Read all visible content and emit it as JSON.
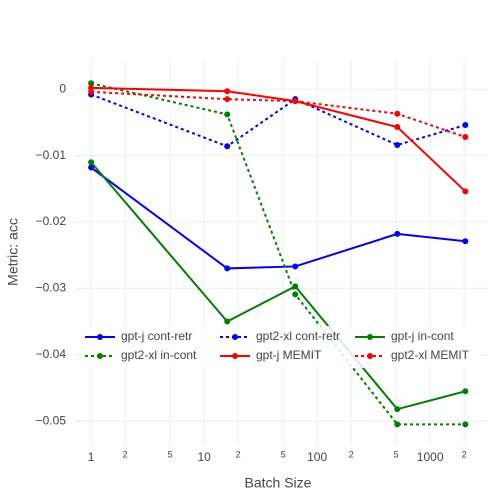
{
  "chart_data": {
    "type": "line",
    "x_label": "Batch Size",
    "y_label": "Metric: acc",
    "x": [
      1,
      16,
      64,
      512,
      2048
    ],
    "xlog": true,
    "xlim": [
      0.72,
      3250
    ],
    "xticks": [
      1,
      {
        "value": 2,
        "label": "2"
      },
      {
        "value": 5,
        "label": "5"
      },
      10,
      {
        "value": 20,
        "label": "2"
      },
      {
        "value": 50,
        "label": "5"
      },
      100,
      {
        "value": 200,
        "label": "2"
      },
      {
        "value": 500,
        "label": "5"
      },
      1000,
      {
        "value": 2000,
        "label": "2"
      }
    ],
    "ylim": [
      -0.0536,
      0.0044
    ],
    "yticks": [
      0,
      {
        "value": -0.01,
        "label": "−0.01"
      },
      {
        "value": -0.02,
        "label": "−0.02"
      },
      {
        "value": -0.03,
        "label": "−0.03"
      },
      {
        "value": -0.04,
        "label": "−0.04"
      },
      {
        "value": -0.05,
        "label": "−0.05"
      }
    ],
    "grid": true,
    "legend": "bottom",
    "series": [
      {
        "name": "gpt-j cont-retr",
        "color": "#0000ff",
        "dash": "solid",
        "values": [
          -0.0118,
          -0.027,
          -0.0267,
          -0.0218,
          -0.0229
        ]
      },
      {
        "name": "gpt2-xl cont-retr",
        "color": "#0000ff",
        "dash": "dot",
        "values": [
          -0.0008,
          -0.0086,
          -0.0015,
          -0.0084,
          -0.0054
        ]
      },
      {
        "name": "gpt-j in-cont",
        "color": "#008000",
        "dash": "solid",
        "values": [
          -0.011,
          -0.035,
          -0.0297,
          -0.0482,
          -0.0455
        ]
      },
      {
        "name": "gpt2-xl in-cont",
        "color": "#008000",
        "dash": "dot",
        "values": [
          0.0009,
          -0.0038,
          -0.0309,
          -0.0505,
          -0.0505
        ]
      },
      {
        "name": "gpt-j MEMIT",
        "color": "#ff0000",
        "dash": "solid",
        "values": [
          0.0002,
          -0.0003,
          -0.0018,
          -0.0057,
          -0.0154
        ]
      },
      {
        "name": "gpt2-xl MEMIT",
        "color": "#ff0000",
        "dash": "dot",
        "values": [
          -0.0004,
          -0.0015,
          -0.0018,
          -0.0037,
          -0.0072
        ]
      }
    ]
  }
}
